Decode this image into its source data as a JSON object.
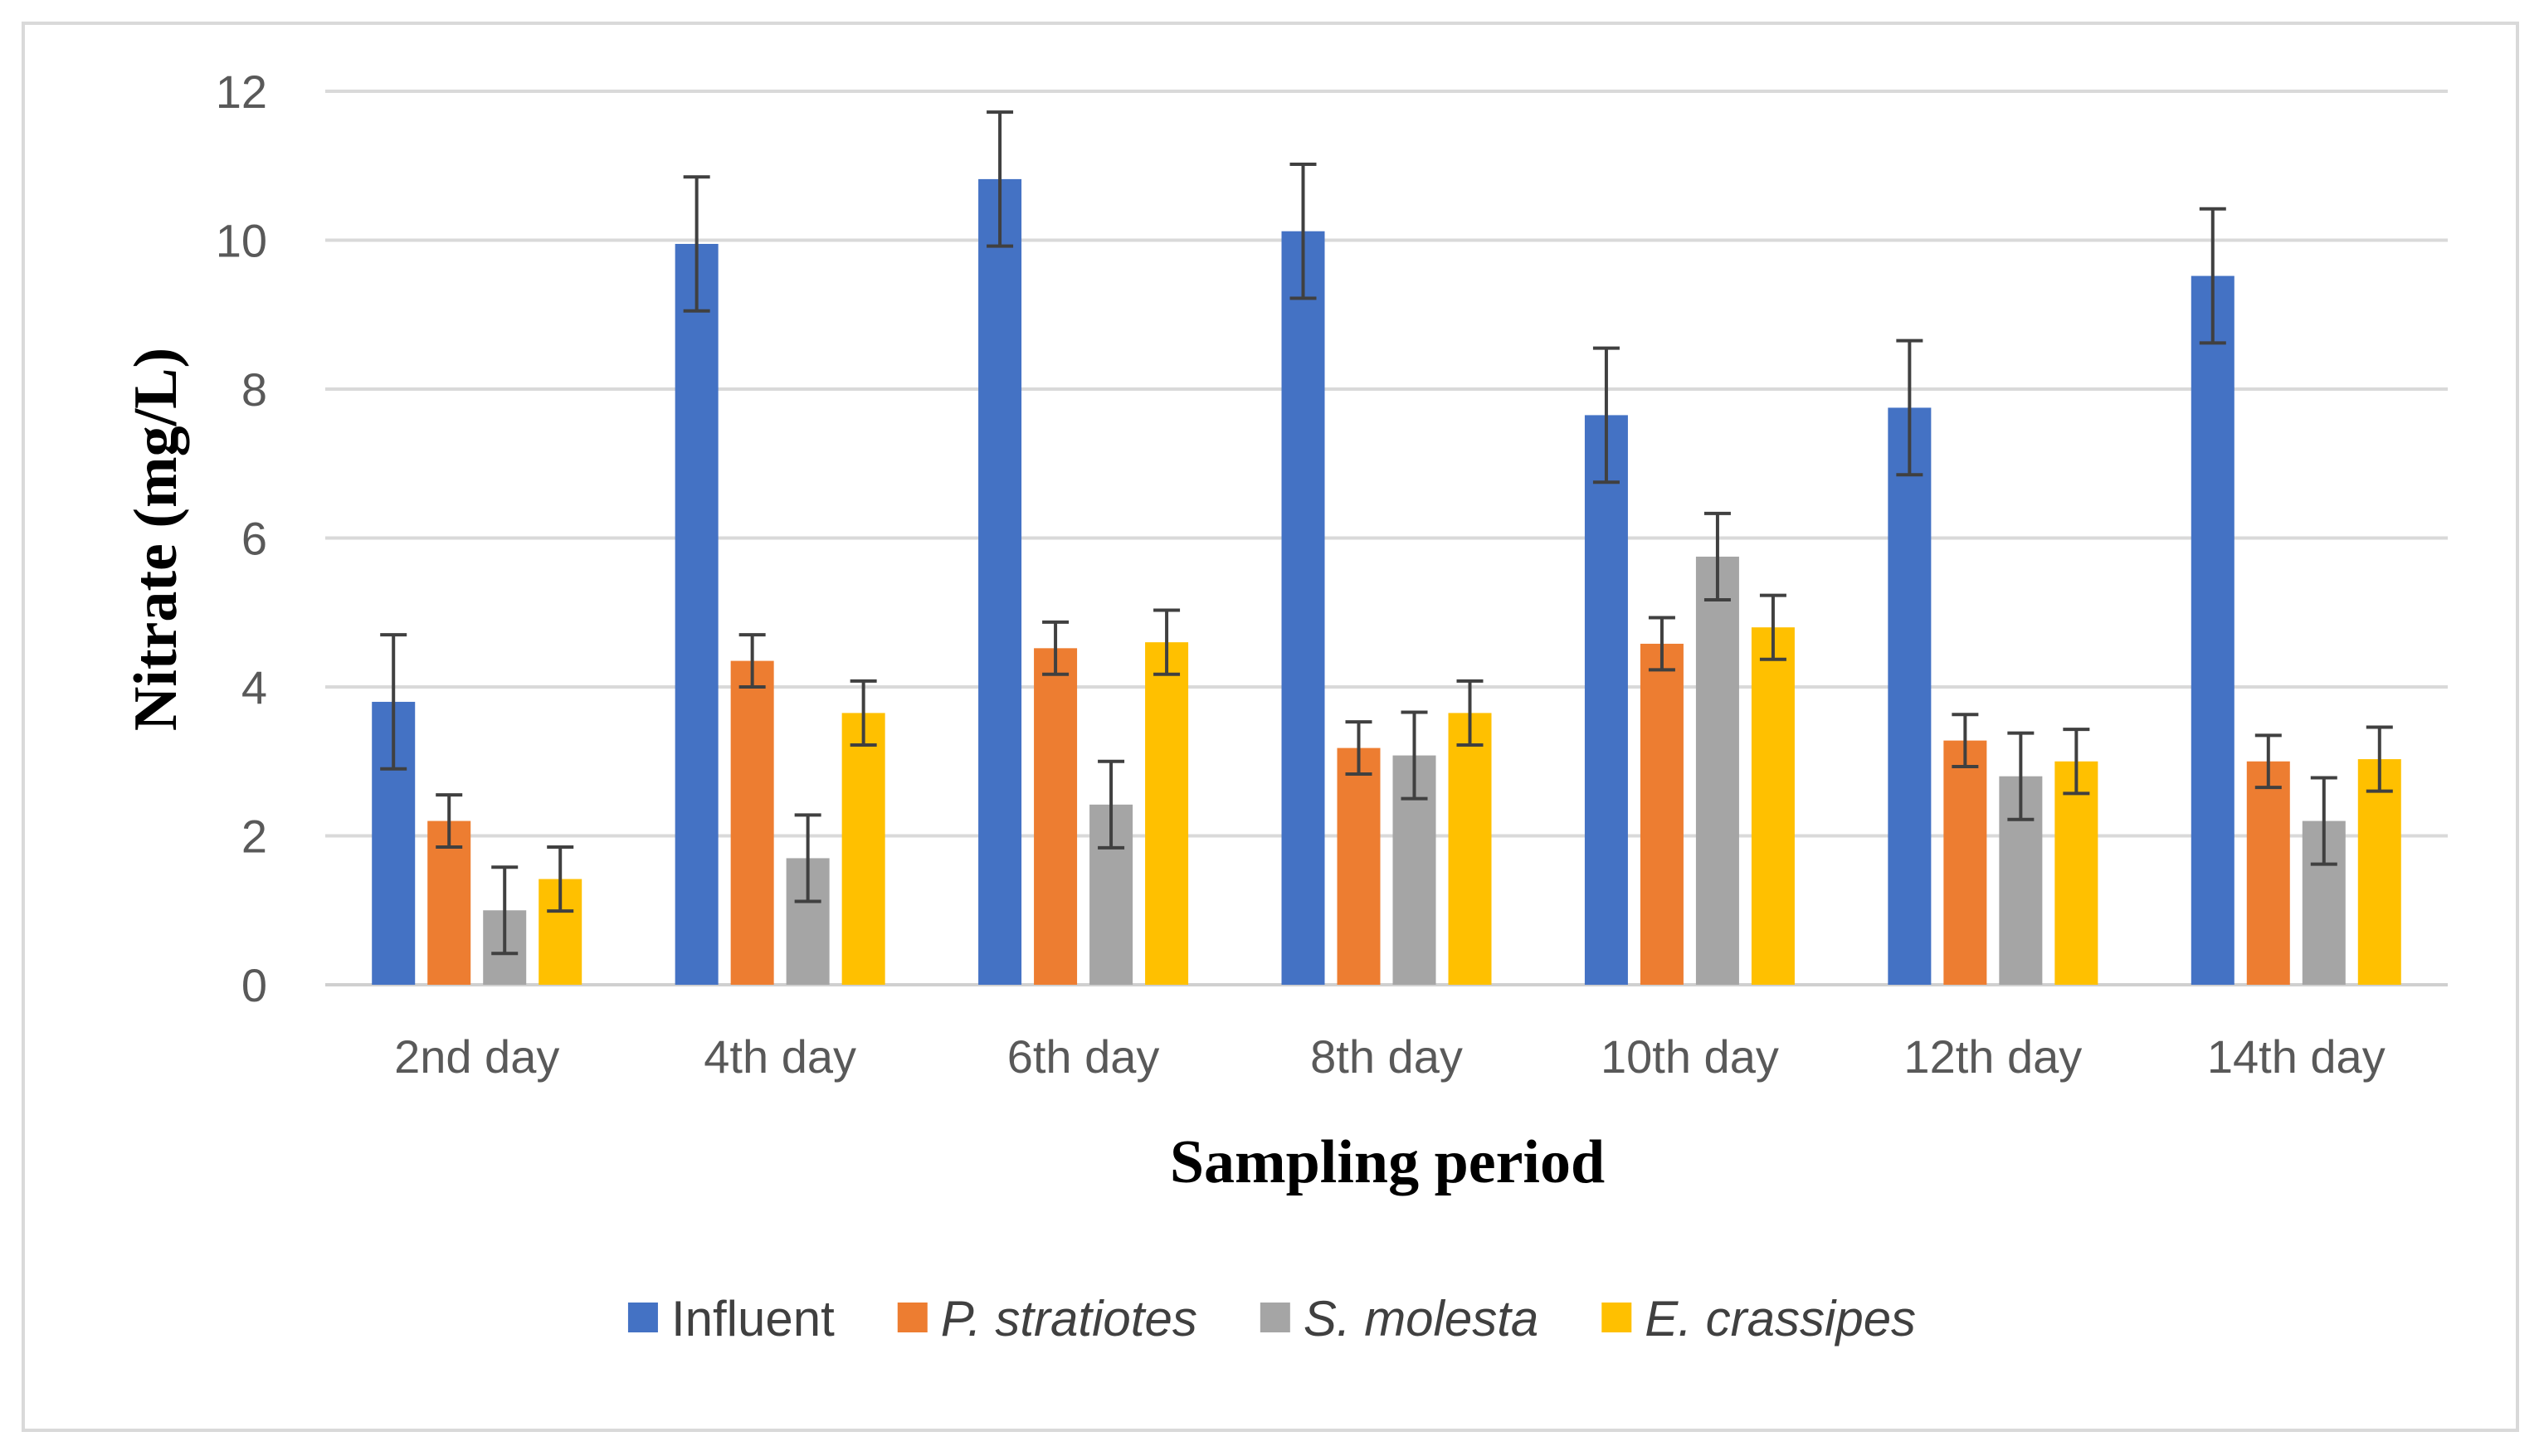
{
  "chart_data": {
    "type": "bar",
    "title": "",
    "xlabel": "Sampling period",
    "ylabel": "Nitrate (mg/L)",
    "ylim": [
      0,
      12
    ],
    "yticks": [
      0,
      2,
      4,
      6,
      8,
      10,
      12
    ],
    "grid": true,
    "legend_position": "bottom",
    "categories": [
      "2nd day",
      "4th day",
      "6th day",
      "8th day",
      "10th day",
      "12th day",
      "14th day"
    ],
    "series": [
      {
        "name": "Influent",
        "italic": false,
        "color": "#4472c4",
        "values": [
          3.8,
          9.95,
          10.82,
          10.12,
          7.65,
          7.75,
          9.52
        ],
        "errors": [
          0.9,
          0.9,
          0.9,
          0.9,
          0.9,
          0.9,
          0.9
        ]
      },
      {
        "name": "P. stratiotes",
        "italic": true,
        "color": "#ed7d31",
        "values": [
          2.2,
          4.35,
          4.52,
          3.18,
          4.58,
          3.28,
          3.0
        ],
        "errors": [
          0.35,
          0.35,
          0.35,
          0.35,
          0.35,
          0.35,
          0.35
        ]
      },
      {
        "name": "S. molesta",
        "italic": true,
        "color": "#a5a5a5",
        "values": [
          1.0,
          1.7,
          2.42,
          3.08,
          5.75,
          2.8,
          2.2
        ],
        "errors": [
          0.58,
          0.58,
          0.58,
          0.58,
          0.58,
          0.58,
          0.58
        ]
      },
      {
        "name": "E. crassipes",
        "italic": true,
        "color": "#ffc000",
        "values": [
          1.42,
          3.65,
          4.6,
          3.65,
          4.8,
          3.0,
          3.03
        ],
        "errors": [
          0.43,
          0.43,
          0.43,
          0.43,
          0.43,
          0.43,
          0.43
        ]
      }
    ]
  }
}
